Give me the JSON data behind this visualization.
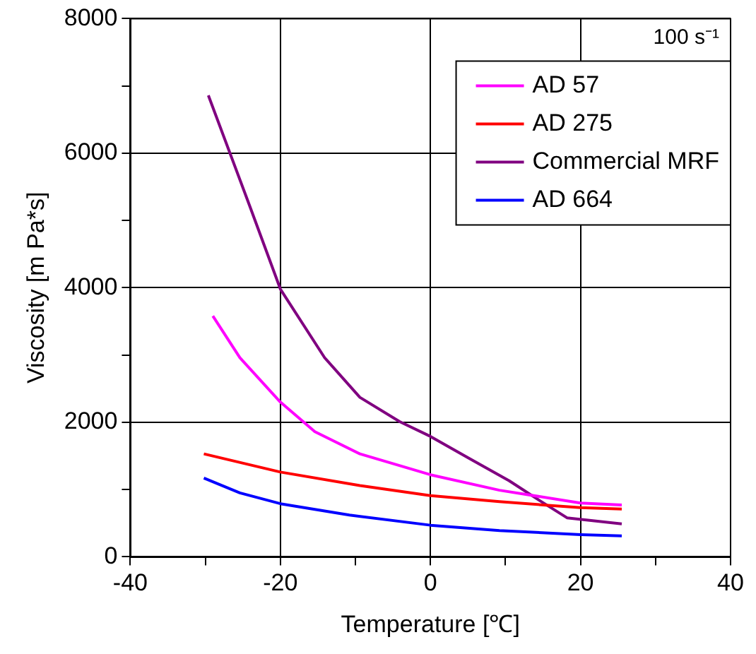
{
  "chart_data": {
    "type": "line",
    "xlabel": "Temperature [℃]",
    "ylabel": "Viscosity [m Pa*s]",
    "xlim": [
      -40,
      40
    ],
    "xticks": [
      -40,
      {
        "value": -30,
        "label": null
      },
      -20,
      {
        "value": -10,
        "label": null
      },
      0,
      {
        "value": 10,
        "label": null
      },
      20,
      {
        "value": 30,
        "label": null
      },
      40
    ],
    "ylim": [
      0,
      8000
    ],
    "yticks": [
      0,
      {
        "value": 1000,
        "label": null
      },
      2000,
      {
        "value": 3000,
        "label": null
      },
      4000,
      {
        "value": 5000,
        "label": null
      },
      6000,
      {
        "value": 7000,
        "label": null
      },
      8000
    ],
    "grid": true,
    "legend": "top right",
    "marker": "none",
    "line_style": "solid",
    "annotations": [
      "100 s⁻¹"
    ],
    "series": [
      {
        "name": "AD 57",
        "color": "#ff00ff",
        "x": [
          -29.0,
          -25.4,
          -20,
          -15.4,
          -9.4,
          0,
          9.2,
          20,
          25.5
        ],
        "values": [
          3580,
          2960,
          2300,
          1860,
          1530,
          1220,
          990,
          800,
          770
        ]
      },
      {
        "name": "AD 275",
        "color": "#ff0000",
        "x": [
          -30.2,
          -20,
          -9.4,
          0,
          9.2,
          20,
          25.5
        ],
        "values": [
          1530,
          1260,
          1060,
          910,
          820,
          730,
          710
        ]
      },
      {
        "name": "Commercial MRF",
        "color": "#800080",
        "x": [
          -29.6,
          -24.1,
          -20,
          -14.1,
          -9.4,
          -4.1,
          0,
          5.2,
          10.5,
          14.5,
          18.2,
          25.5
        ],
        "values": [
          6860,
          5220,
          3980,
          2960,
          2370,
          2010,
          1790,
          1460,
          1130,
          840,
          580,
          490
        ]
      },
      {
        "name": "AD 664",
        "color": "#0000ff",
        "x": [
          -30.2,
          -25.4,
          -20,
          -10.8,
          0,
          9.2,
          20,
          25.5
        ],
        "values": [
          1170,
          950,
          790,
          620,
          470,
          390,
          330,
          310
        ]
      }
    ]
  }
}
